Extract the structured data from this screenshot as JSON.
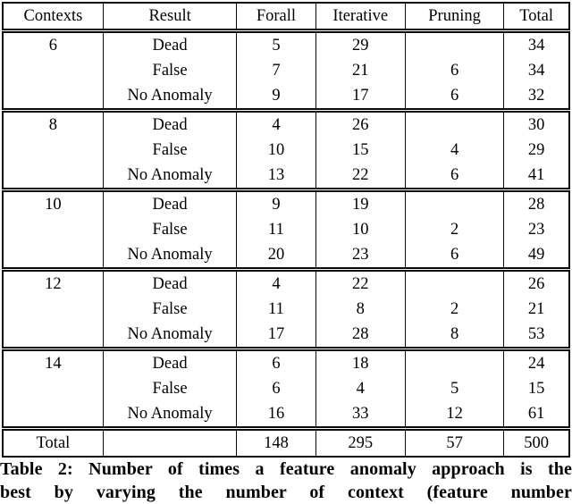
{
  "table": {
    "headers": [
      "Contexts",
      "Result",
      "Forall",
      "Iterative",
      "Pruning",
      "Total"
    ],
    "rows": [
      [
        "6",
        "Dead",
        "5",
        "29",
        "",
        "34"
      ],
      [
        "",
        "False",
        "7",
        "21",
        "6",
        "34"
      ],
      [
        "",
        "No Anomaly",
        "9",
        "17",
        "6",
        "32"
      ],
      [
        "8",
        "Dead",
        "4",
        "26",
        "",
        "30"
      ],
      [
        "",
        "False",
        "10",
        "15",
        "4",
        "29"
      ],
      [
        "",
        "No Anomaly",
        "13",
        "22",
        "6",
        "41"
      ],
      [
        "10",
        "Dead",
        "9",
        "19",
        "",
        "28"
      ],
      [
        "",
        "False",
        "11",
        "10",
        "2",
        "23"
      ],
      [
        "",
        "No Anomaly",
        "20",
        "23",
        "6",
        "49"
      ],
      [
        "12",
        "Dead",
        "4",
        "22",
        "",
        "26"
      ],
      [
        "",
        "False",
        "11",
        "8",
        "2",
        "21"
      ],
      [
        "",
        "No Anomaly",
        "17",
        "28",
        "8",
        "53"
      ],
      [
        "14",
        "Dead",
        "6",
        "18",
        "",
        "24"
      ],
      [
        "",
        "False",
        "6",
        "4",
        "5",
        "15"
      ],
      [
        "",
        "No Anomaly",
        "16",
        "33",
        "12",
        "61"
      ],
      [
        "Total",
        "",
        "148",
        "295",
        "57",
        "500"
      ]
    ]
  },
  "caption": {
    "line1": "Table 2: Number of times a feature anomaly approach is the",
    "line2": "best by varying the number of context (feature number"
  }
}
